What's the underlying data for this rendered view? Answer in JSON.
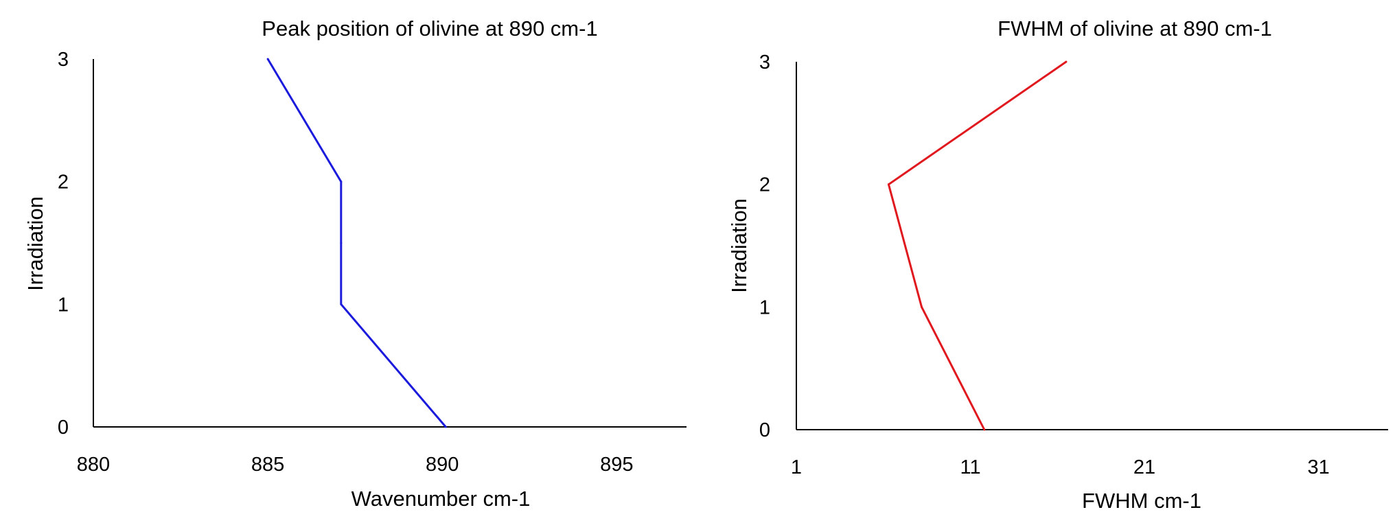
{
  "chart_data": [
    {
      "type": "line",
      "title": "Peak position of olivine at 890 cm-1",
      "xlabel": "Wavenumber cm-1",
      "ylabel": "Irradiation",
      "xlim": [
        880,
        897
      ],
      "ylim": [
        0,
        3
      ],
      "xticks": [
        880,
        885,
        890,
        895
      ],
      "yticks": [
        0,
        1,
        2,
        3
      ],
      "grid": false,
      "series": [
        {
          "color": "#1b1bdc",
          "points": [
            {
              "x": 890.1,
              "y": 0
            },
            {
              "x": 887.1,
              "y": 1
            },
            {
              "x": 887.1,
              "y": 1.5
            },
            {
              "x": 887.1,
              "y": 2
            },
            {
              "x": 885.0,
              "y": 3
            }
          ]
        }
      ]
    },
    {
      "type": "line",
      "title": "FWHM of olivine at 890 cm-1",
      "xlabel": "FWHM cm-1",
      "ylabel": "Irradiation",
      "xlim": [
        1,
        35
      ],
      "ylim": [
        0,
        3
      ],
      "xticks": [
        1,
        11,
        21,
        31
      ],
      "yticks": [
        0,
        1,
        2,
        3
      ],
      "grid": false,
      "series": [
        {
          "color": "#e0191e",
          "points": [
            {
              "x": 11.8,
              "y": 0
            },
            {
              "x": 8.2,
              "y": 1
            },
            {
              "x": 6.3,
              "y": 2
            },
            {
              "x": 16.5,
              "y": 3
            }
          ]
        }
      ]
    }
  ]
}
